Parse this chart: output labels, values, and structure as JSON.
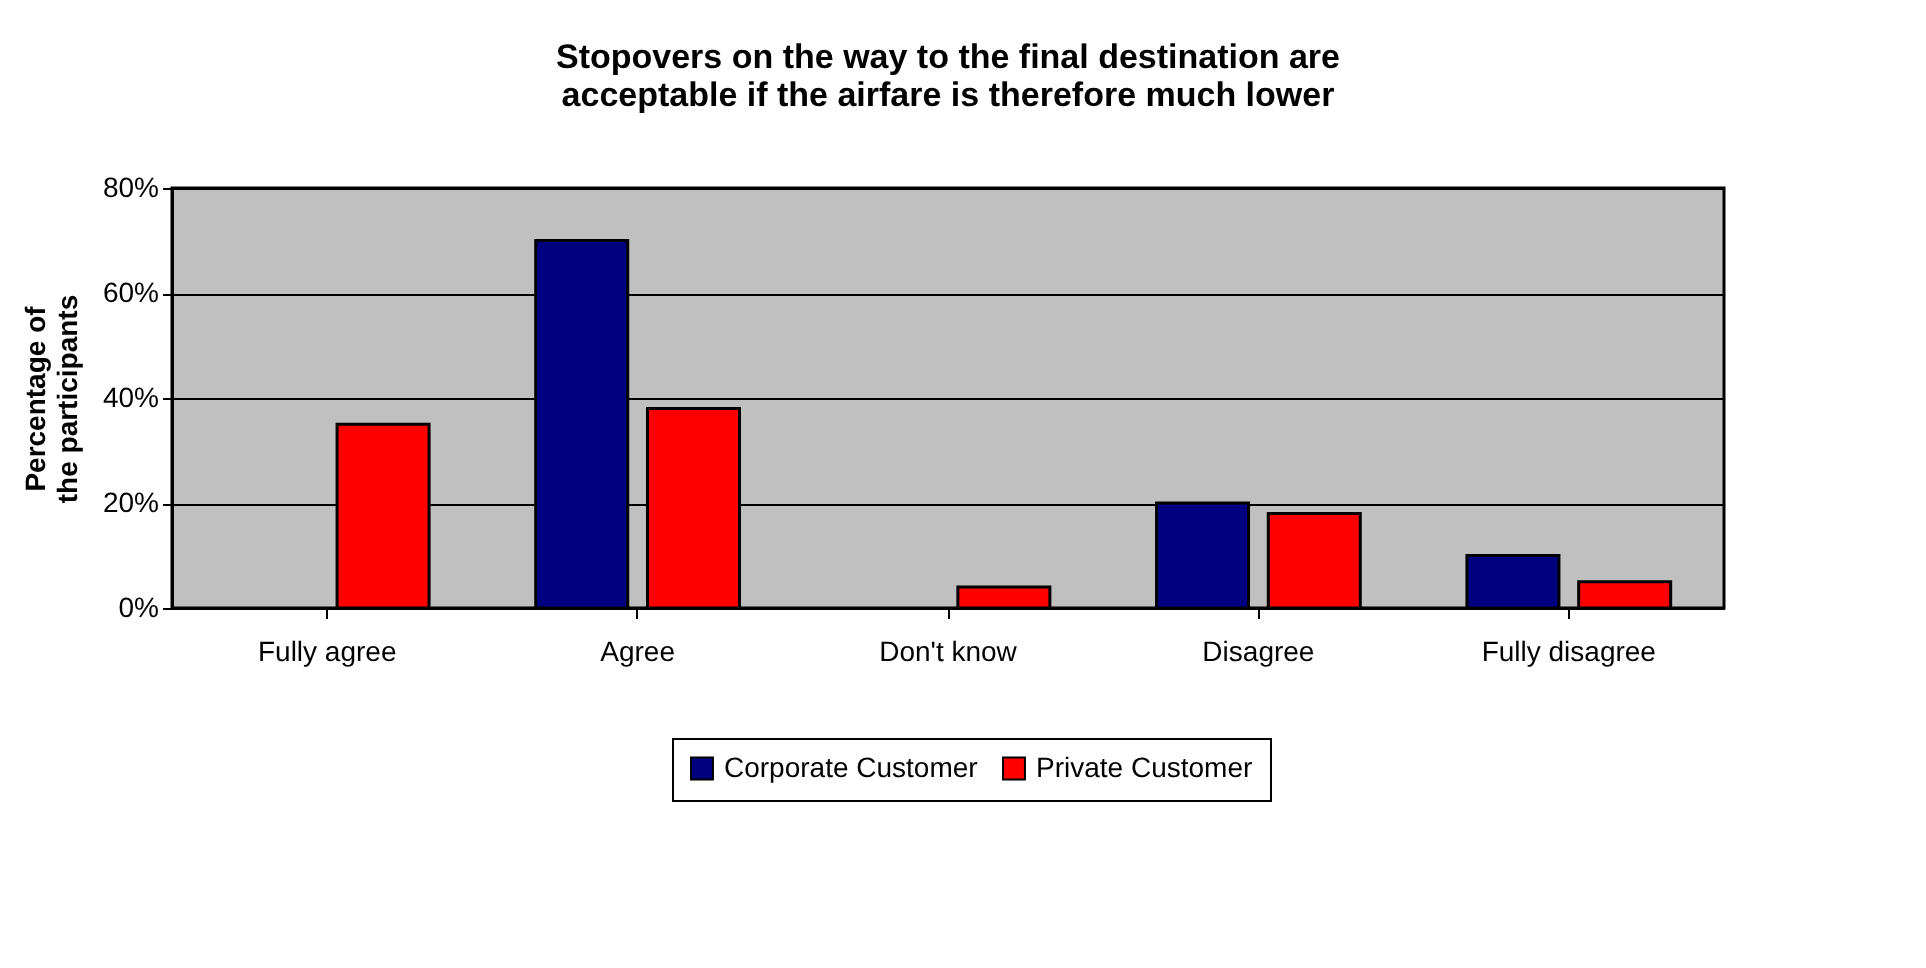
{
  "chart_data": {
    "type": "bar",
    "title": "Stopovers on the way to the final destination are acceptable if the airfare is therefore much lower",
    "ylabel": "Percentage of the participants",
    "categories": [
      "Fully agree",
      "Agree",
      "Don't know",
      "Disagree",
      "Fully disagree"
    ],
    "series": [
      {
        "name": "Corporate Customer",
        "color": "#000080",
        "values": [
          null,
          70,
          null,
          20,
          10
        ]
      },
      {
        "name": "Private Customer",
        "color": "#ff0000",
        "values": [
          35,
          38,
          4,
          18,
          5
        ]
      }
    ],
    "ylim": [
      0,
      80
    ],
    "yticks": [
      {
        "value": 0,
        "label": "0%"
      },
      {
        "value": 20,
        "label": "20%"
      },
      {
        "value": 40,
        "label": "40%"
      },
      {
        "value": 60,
        "label": "60%"
      },
      {
        "value": 80,
        "label": "80%"
      }
    ],
    "grid": "y",
    "legend": "bottom"
  }
}
